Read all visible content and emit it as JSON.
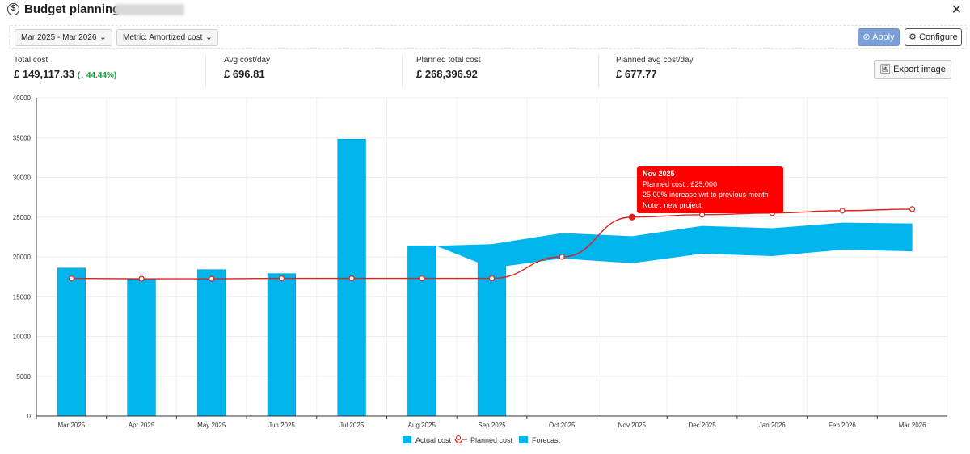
{
  "window": {
    "title": "Budget planning -",
    "icon": "dollar-circle-icon",
    "close": "✕"
  },
  "toolbar": {
    "date_range": "Mar 2025 - Mar 2026",
    "metric": "Metric: Amortized cost",
    "apply_label": "Apply",
    "configure_label": "Configure"
  },
  "stats": {
    "total_cost_label": "Total cost",
    "total_cost_value": "£ 149,117.33",
    "total_cost_delta": "(↓ 44.44%)",
    "avg_label": "Avg cost/day",
    "avg_value": "£ 696.81",
    "planned_total_label": "Planned total cost",
    "planned_total_value": "£ 268,396.92",
    "planned_avg_label": "Planned avg cost/day",
    "planned_avg_value": "£ 677.77",
    "export_label": "Export image"
  },
  "tooltip": {
    "title": "Nov 2025",
    "line1": "Planned cost : £25,000",
    "line2": "25.00% increase wrt to previous month",
    "line3": "Note : new project"
  },
  "colors": {
    "actual": "#00b4ec",
    "planned": "#e0201c",
    "forecast": "#00b4ec",
    "tooltip": "#ff0000",
    "apply": "#7b9fd6",
    "delta": "#1a9a3c"
  },
  "chart_data": {
    "type": "bar",
    "categories": [
      "Mar 2025",
      "Apr 2025",
      "May 2025",
      "Jun 2025",
      "Jul 2025",
      "Aug 2025",
      "Sep 2025",
      "Oct 2025",
      "Nov 2025",
      "Dec 2025",
      "Jan 2026",
      "Feb 2026",
      "Mar 2026"
    ],
    "ylim": [
      0,
      40000
    ],
    "yticks": [
      0,
      5000,
      10000,
      15000,
      20000,
      25000,
      30000,
      35000,
      40000
    ],
    "series": [
      {
        "name": "Actual cost",
        "kind": "bar",
        "values": [
          18600,
          17200,
          18400,
          17900,
          34800,
          21400,
          20700,
          null,
          null,
          null,
          null,
          null,
          null
        ]
      },
      {
        "name": "Planned cost",
        "kind": "line",
        "values": [
          17300,
          17250,
          17250,
          17300,
          17300,
          17300,
          17300,
          20000,
          25000,
          25300,
          25500,
          25800,
          26000
        ]
      },
      {
        "name": "Forecast",
        "kind": "band",
        "low": [
          null,
          null,
          null,
          null,
          null,
          21400,
          18600,
          19800,
          19200,
          20400,
          20100,
          20900,
          20700
        ],
        "high": [
          null,
          null,
          null,
          null,
          null,
          21400,
          21600,
          23000,
          22600,
          23900,
          23600,
          24300,
          24200
        ]
      }
    ],
    "legend": [
      "Actual cost",
      "Planned cost",
      "Forecast"
    ],
    "grid": true,
    "title": "",
    "xlabel": "",
    "ylabel": ""
  }
}
